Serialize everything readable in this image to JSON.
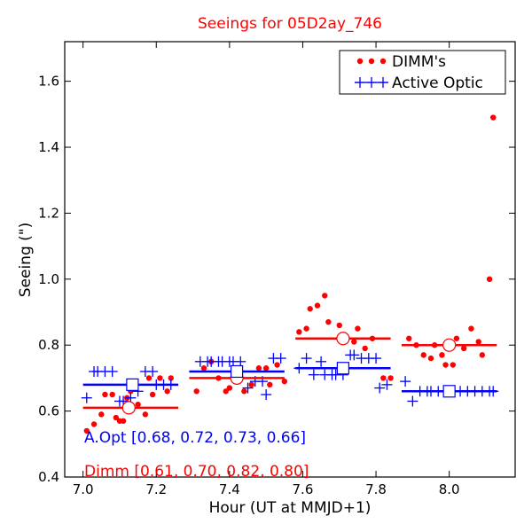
{
  "chart_data": {
    "type": "scatter",
    "title": "Seeings for 05D2ay_746",
    "xlabel": "Hour (UT at MMJD+1)",
    "ylabel": "Seeing (\")",
    "xlim": [
      6.95,
      8.18
    ],
    "ylim": [
      0.4,
      1.72
    ],
    "xticks": [
      7.0,
      7.2,
      7.4,
      7.6,
      7.8,
      8.0
    ],
    "xtick_labels": [
      "7.0",
      "7.2",
      "7.4",
      "7.6",
      "7.8",
      "8.0"
    ],
    "yticks": [
      0.4,
      0.6,
      0.8,
      1.0,
      1.2,
      1.4,
      1.6
    ],
    "ytick_labels": [
      "0.4",
      "0.6",
      "0.8",
      "1.0",
      "1.2",
      "1.4",
      "1.6"
    ],
    "grid": false,
    "legend": {
      "position": "top-right",
      "entries": [
        "DIMM's",
        "Active Optic"
      ]
    },
    "series": [
      {
        "name": "DIMM's",
        "color": "#ff0000",
        "marker": "dot",
        "x": [
          7.01,
          7.03,
          7.05,
          7.06,
          7.08,
          7.09,
          7.1,
          7.11,
          7.12,
          7.13,
          7.14,
          7.15,
          7.17,
          7.18,
          7.19,
          7.21,
          7.23,
          7.24,
          7.31,
          7.33,
          7.35,
          7.37,
          7.39,
          7.4,
          7.42,
          7.44,
          7.46,
          7.48,
          7.5,
          7.51,
          7.53,
          7.55,
          7.59,
          7.61,
          7.62,
          7.64,
          7.66,
          7.67,
          7.7,
          7.72,
          7.74,
          7.75,
          7.77,
          7.79,
          7.82,
          7.84,
          7.89,
          7.91,
          7.93,
          7.95,
          7.96,
          7.98,
          7.99,
          8.01,
          8.02,
          8.04,
          8.06,
          8.08,
          8.09,
          8.11
        ],
        "y": [
          0.54,
          0.56,
          0.59,
          0.65,
          0.65,
          0.58,
          0.57,
          0.57,
          0.64,
          0.66,
          0.68,
          0.62,
          0.59,
          0.7,
          0.65,
          0.7,
          0.66,
          0.7,
          0.66,
          0.73,
          0.75,
          0.7,
          0.66,
          0.67,
          0.7,
          0.66,
          0.68,
          0.73,
          0.73,
          0.68,
          0.74,
          0.69,
          0.84,
          0.85,
          0.91,
          0.92,
          0.95,
          0.87,
          0.86,
          0.82,
          0.81,
          0.85,
          0.79,
          0.82,
          0.7,
          0.7,
          0.82,
          0.8,
          0.77,
          0.76,
          0.8,
          0.77,
          0.74,
          0.74,
          0.82,
          0.79,
          0.85,
          0.81,
          0.77,
          1.0
        ],
        "outlier": {
          "x": 8.12,
          "y": 1.49
        },
        "bin_lines": [
          {
            "x0": 7.0,
            "x1": 7.26,
            "y": 0.61
          },
          {
            "x0": 7.29,
            "x1": 7.55,
            "y": 0.7
          },
          {
            "x0": 7.58,
            "x1": 7.84,
            "y": 0.82
          },
          {
            "x0": 7.87,
            "x1": 8.13,
            "y": 0.8
          }
        ],
        "bin_means": [
          {
            "x": 7.125,
            "y": 0.61
          },
          {
            "x": 7.42,
            "y": 0.7
          },
          {
            "x": 7.71,
            "y": 0.82
          },
          {
            "x": 8.0,
            "y": 0.8
          }
        ]
      },
      {
        "name": "Active Optic",
        "color": "#0000ff",
        "marker": "plus",
        "x": [
          7.01,
          7.03,
          7.04,
          7.06,
          7.08,
          7.1,
          7.11,
          7.13,
          7.15,
          7.17,
          7.19,
          7.2,
          7.22,
          7.24,
          7.32,
          7.34,
          7.35,
          7.37,
          7.38,
          7.4,
          7.41,
          7.43,
          7.45,
          7.47,
          7.49,
          7.5,
          7.52,
          7.54,
          7.59,
          7.61,
          7.63,
          7.65,
          7.66,
          7.68,
          7.69,
          7.71,
          7.73,
          7.74,
          7.76,
          7.78,
          7.8,
          7.81,
          7.83,
          7.88,
          7.9,
          7.92,
          7.94,
          7.95,
          7.97,
          7.99,
          8.01,
          8.03,
          8.05,
          8.07,
          8.09,
          8.11,
          8.12
        ],
        "y": [
          0.64,
          0.72,
          0.72,
          0.72,
          0.72,
          0.63,
          0.63,
          0.64,
          0.66,
          0.72,
          0.72,
          0.68,
          0.68,
          0.68,
          0.75,
          0.75,
          0.75,
          0.75,
          0.75,
          0.75,
          0.75,
          0.75,
          0.67,
          0.69,
          0.69,
          0.65,
          0.76,
          0.76,
          0.73,
          0.76,
          0.71,
          0.75,
          0.71,
          0.71,
          0.71,
          0.71,
          0.77,
          0.77,
          0.76,
          0.76,
          0.76,
          0.67,
          0.68,
          0.69,
          0.63,
          0.66,
          0.66,
          0.66,
          0.66,
          0.66,
          0.66,
          0.66,
          0.66,
          0.66,
          0.66,
          0.66,
          0.66
        ],
        "bin_lines": [
          {
            "x0": 7.0,
            "x1": 7.26,
            "y": 0.68
          },
          {
            "x0": 7.29,
            "x1": 7.55,
            "y": 0.72
          },
          {
            "x0": 7.58,
            "x1": 7.84,
            "y": 0.73
          },
          {
            "x0": 7.87,
            "x1": 8.13,
            "y": 0.66
          }
        ],
        "bin_means": [
          {
            "x": 7.135,
            "y": 0.68
          },
          {
            "x": 7.42,
            "y": 0.72
          },
          {
            "x": 7.71,
            "y": 0.73
          },
          {
            "x": 8.0,
            "y": 0.66
          }
        ]
      }
    ],
    "annotations": [
      {
        "text": "A.Opt [0.68, 0.72, 0.73, 0.66]",
        "color": "#0000ff"
      },
      {
        "text": "Dimm [0.61, 0.70, 0.82, 0.80]",
        "color": "#ff0000"
      }
    ]
  }
}
